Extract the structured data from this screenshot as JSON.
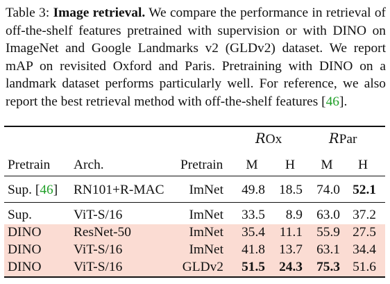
{
  "caption": {
    "label": "Table 3: ",
    "title": "Image retrieval.",
    "text_part1": " We compare the performance in retrieval of off-the-shelf features pretrained with supervision or with DINO on ImageNet and Google Landmarks v2 (GLDv2) dataset.  We report mAP on revisited Oxford and Paris. Pretraining with DINO on a landmark dataset performs particularly well. For reference, we also report the best retrieval method with off-the-shelf features [",
    "citation": "46",
    "text_part2": "]."
  },
  "table": {
    "group_headers": {
      "rox_symbol": "R",
      "rox_suffix": "Ox",
      "rpar_symbol": "R",
      "rpar_suffix": "Par"
    },
    "headers": {
      "pretrain": "Pretrain",
      "arch": "Arch.",
      "pretrain_data": "Pretrain",
      "rox_m": "M",
      "rox_h": "H",
      "rpar_m": "M",
      "rpar_h": "H"
    },
    "rows": [
      {
        "pretrain": "Sup. ",
        "cite": "46",
        "arch": "RN101+R-MAC",
        "data": "ImNet",
        "rox_m": "49.8",
        "rox_h": "18.5",
        "rpar_m": "74.0",
        "rpar_h": "52.1"
      },
      {
        "pretrain": "Sup.",
        "arch": "ViT-S/16",
        "data": "ImNet",
        "rox_m": "33.5",
        "rox_h": "8.9",
        "rpar_m": "63.0",
        "rpar_h": "37.2"
      },
      {
        "pretrain": "DINO",
        "arch": "ResNet-50",
        "data": "ImNet",
        "rox_m": "35.4",
        "rox_h": "11.1",
        "rpar_m": "55.9",
        "rpar_h": "27.5"
      },
      {
        "pretrain": "DINO",
        "arch": "ViT-S/16",
        "data": "ImNet",
        "rox_m": "41.8",
        "rox_h": "13.7",
        "rpar_m": "63.1",
        "rpar_h": "34.4"
      },
      {
        "pretrain": "DINO",
        "arch": "ViT-S/16",
        "data": "GLDv2",
        "rox_m": "51.5",
        "rox_h": "24.3",
        "rpar_m": "75.3",
        "rpar_h": "51.6"
      }
    ],
    "highlight_color": "#fbdcd3",
    "citation_color": "#22a02a"
  }
}
